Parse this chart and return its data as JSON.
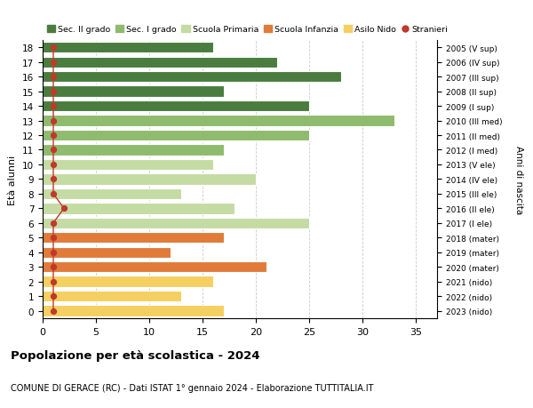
{
  "ages": [
    0,
    1,
    2,
    3,
    4,
    5,
    6,
    7,
    8,
    9,
    10,
    11,
    12,
    13,
    14,
    15,
    16,
    17,
    18
  ],
  "right_labels": [
    "2023 (nido)",
    "2022 (nido)",
    "2021 (nido)",
    "2020 (mater)",
    "2019 (mater)",
    "2018 (mater)",
    "2017 (I ele)",
    "2016 (II ele)",
    "2015 (III ele)",
    "2014 (IV ele)",
    "2013 (V ele)",
    "2012 (I med)",
    "2011 (II med)",
    "2010 (III med)",
    "2009 (I sup)",
    "2008 (II sup)",
    "2007 (III sup)",
    "2006 (IV sup)",
    "2005 (V sup)"
  ],
  "values": [
    17,
    13,
    16,
    21,
    12,
    17,
    25,
    18,
    13,
    20,
    16,
    17,
    25,
    33,
    25,
    17,
    28,
    22,
    16
  ],
  "bar_colors": [
    "#f5d060",
    "#f5d060",
    "#f5d060",
    "#e07b39",
    "#e07b39",
    "#e07b39",
    "#c5dba4",
    "#c5dba4",
    "#c5dba4",
    "#c5dba4",
    "#c5dba4",
    "#8fbb6e",
    "#8fbb6e",
    "#8fbb6e",
    "#4a7c3f",
    "#4a7c3f",
    "#4a7c3f",
    "#4a7c3f",
    "#4a7c3f"
  ],
  "stranieri_values": [
    1,
    1,
    1,
    1,
    1,
    1,
    1,
    2,
    1,
    1,
    1,
    1,
    1,
    1,
    1,
    1,
    1,
    1,
    1
  ],
  "stranieri_color": "#c0392b",
  "legend_items": [
    {
      "label": "Sec. II grado",
      "color": "#4a7c3f"
    },
    {
      "label": "Sec. I grado",
      "color": "#8fbb6e"
    },
    {
      "label": "Scuola Primaria",
      "color": "#c5dba4"
    },
    {
      "label": "Scuola Infanzia",
      "color": "#e07b39"
    },
    {
      "label": "Asilo Nido",
      "color": "#f5d060"
    },
    {
      "label": "Stranieri",
      "color": "#c0392b"
    }
  ],
  "ylabel": "Età alunni",
  "right_ylabel": "Anni di nascita",
  "title": "Popolazione per età scolastica - 2024",
  "subtitle": "COMUNE DI GERACE (RC) - Dati ISTAT 1° gennaio 2024 - Elaborazione TUTTITALIA.IT",
  "xlim": [
    0,
    37
  ],
  "background_color": "#ffffff",
  "grid_color": "#cccccc"
}
